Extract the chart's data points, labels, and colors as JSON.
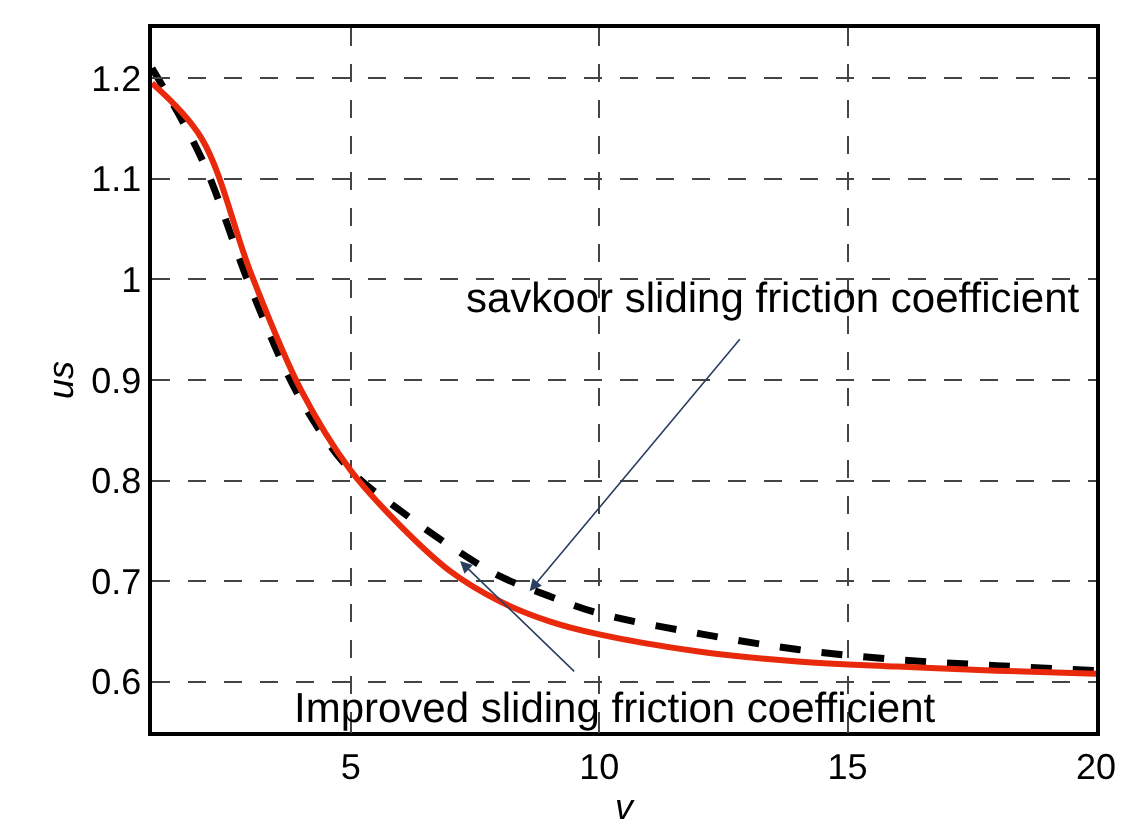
{
  "chart_data": {
    "type": "line",
    "xlabel": "v",
    "ylabel": "us",
    "xlim": [
      1,
      20
    ],
    "xticks": [
      5,
      10,
      15,
      20
    ],
    "ylim": [
      0.55,
      1.25
    ],
    "yticks": [
      0.6,
      0.7,
      0.8,
      0.9,
      1,
      1.1,
      1.2
    ],
    "grid": true,
    "marker": "none",
    "x": [
      1,
      2,
      3,
      4,
      5,
      6,
      7,
      8,
      9,
      10,
      12,
      14,
      16,
      18,
      20
    ],
    "series": [
      {
        "color": "#000000",
        "line_style": "dashed",
        "values": [
          1.21,
          1.12,
          0.99,
          0.88,
          0.81,
          0.77,
          0.735,
          0.705,
          0.685,
          0.668,
          0.648,
          0.632,
          0.622,
          0.616,
          0.611
        ]
      },
      {
        "color": "#e8290b",
        "line_style": "solid",
        "values": [
          1.195,
          1.14,
          1.005,
          0.89,
          0.81,
          0.755,
          0.71,
          0.68,
          0.66,
          0.647,
          0.63,
          0.62,
          0.615,
          0.611,
          0.608
        ]
      }
    ],
    "annotations": [
      {
        "text": "savkoor sliding friction coefficient",
        "x": 8.6,
        "y": 0.69
      },
      {
        "text": "Improved sliding friction coefficient",
        "x": 7.2,
        "y": 0.72
      }
    ]
  }
}
